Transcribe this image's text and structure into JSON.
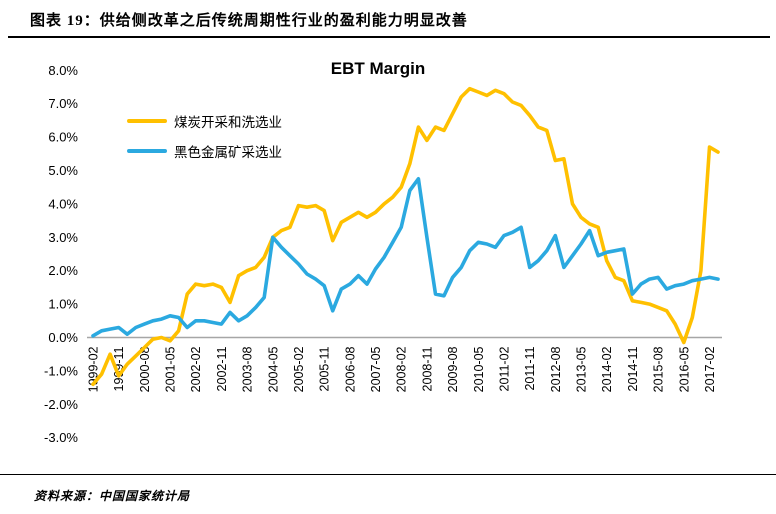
{
  "header": {
    "title": "图表 19：供给侧改革之后传统周期性行业的盈利能力明显改善"
  },
  "footer": {
    "source": "资料来源：中国国家统计局"
  },
  "chart_data": {
    "type": "line",
    "title": "EBT Margin",
    "xlabel": "",
    "ylabel": "",
    "ylim": [
      -3,
      8
    ],
    "grid": "zero-line-only",
    "legend_position": "top-left",
    "ytick_labels": [
      "8.0%",
      "7.0%",
      "6.0%",
      "5.0%",
      "4.0%",
      "3.0%",
      "2.0%",
      "1.0%",
      "0.0%",
      "-1.0%",
      "-2.0%",
      "-3.0%"
    ],
    "ytick_values": [
      8,
      7,
      6,
      5,
      4,
      3,
      2,
      1,
      0,
      -1,
      -2,
      -3
    ],
    "xtick_every": 3,
    "x": [
      "1999-02",
      "1999-05",
      "1999-08",
      "1999-11",
      "2000-02",
      "2000-05",
      "2000-08",
      "2000-11",
      "2001-02",
      "2001-05",
      "2001-08",
      "2001-11",
      "2002-02",
      "2002-05",
      "2002-08",
      "2002-11",
      "2003-02",
      "2003-05",
      "2003-08",
      "2003-11",
      "2004-02",
      "2004-05",
      "2004-08",
      "2004-11",
      "2005-02",
      "2005-05",
      "2005-08",
      "2005-11",
      "2006-02",
      "2006-05",
      "2006-08",
      "2006-11",
      "2007-02",
      "2007-05",
      "2007-08",
      "2007-11",
      "2008-02",
      "2008-05",
      "2008-08",
      "2008-11",
      "2009-02",
      "2009-05",
      "2009-08",
      "2009-11",
      "2010-02",
      "2010-05",
      "2010-08",
      "2010-11",
      "2011-02",
      "2011-05",
      "2011-08",
      "2011-11",
      "2012-02",
      "2012-05",
      "2012-08",
      "2012-11",
      "2013-02",
      "2013-05",
      "2013-08",
      "2013-11",
      "2014-02",
      "2014-05",
      "2014-08",
      "2014-11",
      "2015-02",
      "2015-05",
      "2015-08",
      "2015-11",
      "2016-02",
      "2016-05",
      "2016-08",
      "2016-11",
      "2017-02",
      "2017-05"
    ],
    "series": [
      {
        "name": "煤炭开采和洗选业",
        "color": "#FFC000",
        "values": [
          -1.4,
          -1.1,
          -0.5,
          -1.15,
          -0.8,
          -0.55,
          -0.3,
          -0.05,
          0.0,
          -0.1,
          0.2,
          1.3,
          1.6,
          1.55,
          1.6,
          1.5,
          1.05,
          1.85,
          2.0,
          2.1,
          2.4,
          3.0,
          3.2,
          3.3,
          3.95,
          3.9,
          3.95,
          3.8,
          2.9,
          3.45,
          3.6,
          3.75,
          3.6,
          3.75,
          4.0,
          4.2,
          4.5,
          5.2,
          6.3,
          5.9,
          6.3,
          6.2,
          6.7,
          7.2,
          7.45,
          7.35,
          7.25,
          7.4,
          7.3,
          7.05,
          6.95,
          6.65,
          6.3,
          6.2,
          5.3,
          5.35,
          4.0,
          3.6,
          3.4,
          3.3,
          2.3,
          1.8,
          1.7,
          1.1,
          1.05,
          1.0,
          0.9,
          0.8,
          0.4,
          -0.15,
          0.6,
          2.0,
          5.7,
          5.55
        ]
      },
      {
        "name": "黑色金属矿采选业",
        "color": "#2BA9E0",
        "values": [
          0.05,
          0.2,
          0.25,
          0.3,
          0.1,
          0.3,
          0.4,
          0.5,
          0.55,
          0.65,
          0.6,
          0.3,
          0.5,
          0.5,
          0.45,
          0.4,
          0.75,
          0.5,
          0.65,
          0.9,
          1.2,
          3.0,
          2.7,
          2.45,
          2.2,
          1.9,
          1.75,
          1.55,
          0.8,
          1.45,
          1.6,
          1.85,
          1.6,
          2.05,
          2.4,
          2.85,
          3.3,
          4.4,
          4.75,
          3.0,
          1.3,
          1.25,
          1.8,
          2.1,
          2.6,
          2.85,
          2.8,
          2.7,
          3.05,
          3.15,
          3.3,
          2.1,
          2.3,
          2.6,
          3.05,
          2.1,
          2.45,
          2.8,
          3.2,
          2.45,
          2.55,
          2.6,
          2.65,
          1.3,
          1.6,
          1.75,
          1.8,
          1.45,
          1.55,
          1.6,
          1.7,
          1.75,
          1.8,
          1.75
        ]
      }
    ],
    "zero_line_color": "#a6a6a6",
    "axis_text_color": "#000000"
  }
}
